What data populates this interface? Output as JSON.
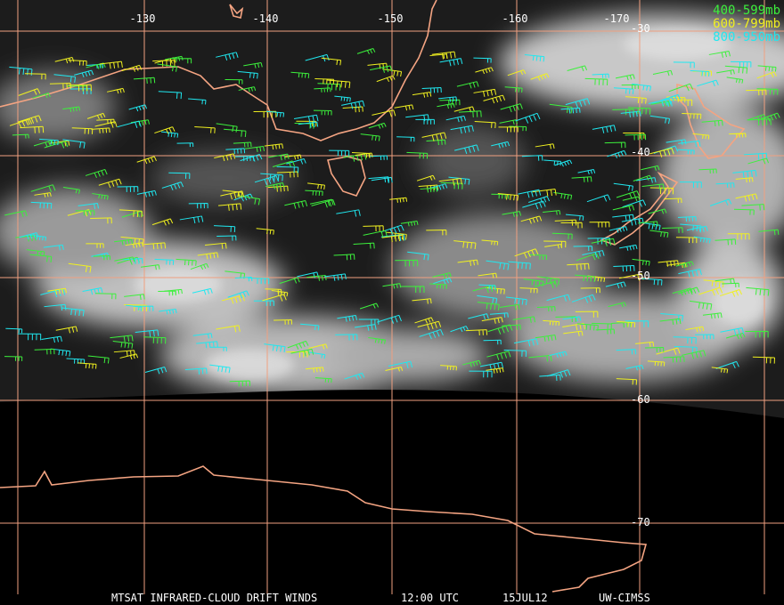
{
  "map": {
    "longitude_labels": [
      "-130",
      "-140",
      "-150",
      "-160",
      "-170"
    ],
    "latitude_labels": [
      "-30",
      "-40",
      "-50",
      "-60",
      "-70"
    ],
    "legend": [
      {
        "label": "400-599mb",
        "color": "#3cf03c"
      },
      {
        "label": "600-799mb",
        "color": "#f0f020"
      },
      {
        "label": "800-950mb",
        "color": "#20e8f0"
      }
    ],
    "footer": {
      "title": "MTSAT INFRARED-CLOUD DRIFT WINDS",
      "time": "12:00 UTC",
      "date": "15JUL12",
      "source": "UW-CIMSS"
    }
  }
}
